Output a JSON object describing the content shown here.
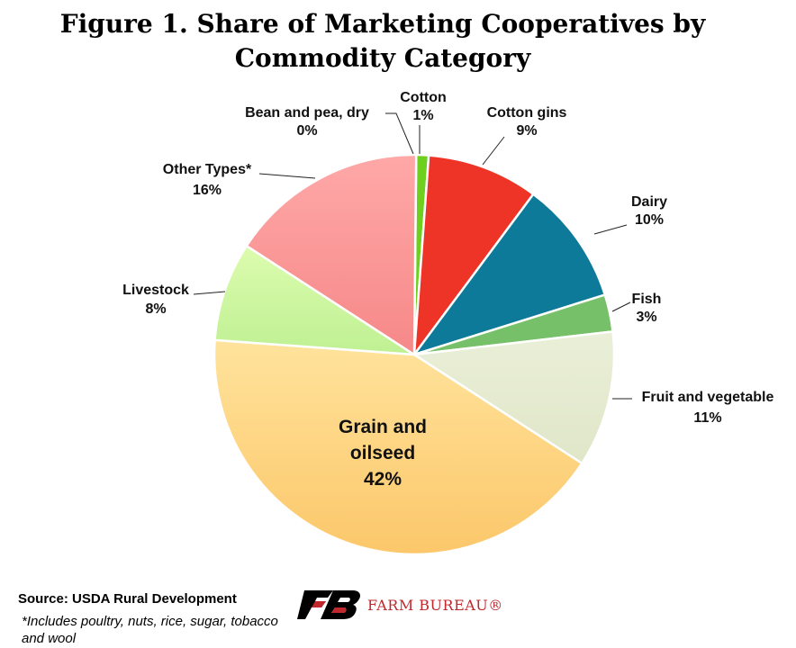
{
  "title_line1": "Figure 1. Share of Marketing Cooperatives by",
  "title_line2": "Commodity Category",
  "source": "Source: USDA Rural Development",
  "footnote": "*Includes poultry, nuts, rice, sugar, tobacco and wool",
  "logo": {
    "text": "FARM BUREAU®",
    "icon": "farm-bureau-logo-icon",
    "color": "#c0282d"
  },
  "chart_data": {
    "type": "pie",
    "title": "Figure 1. Share of Marketing Cooperatives by Commodity Category",
    "start": "12 o'clock, clockwise",
    "slices": [
      {
        "label": "Cotton",
        "value": 1,
        "display": "1%",
        "color": "#6fcf1f"
      },
      {
        "label": "Cotton gins",
        "value": 9,
        "display": "9%",
        "color": "#ee3427"
      },
      {
        "label": "Dairy",
        "value": 10,
        "display": "10%",
        "color": "#0e7a99"
      },
      {
        "label": "Fish",
        "value": 3,
        "display": "3%",
        "color": "#77c06a"
      },
      {
        "label": "Fruit and vegetable",
        "value": 11,
        "display": "11%",
        "color": "#e6ebd2"
      },
      {
        "label": "Grain and oilseed",
        "value": 42,
        "display": "42%",
        "color": "#fdd883"
      },
      {
        "label": "Livestock",
        "value": 8,
        "display": "8%",
        "color": "#cdf5a0"
      },
      {
        "label": "Other Types*",
        "value": 16,
        "display": "16%",
        "color": "#fb9898"
      },
      {
        "label": "Bean and pea, dry",
        "value": 0,
        "display": "0%",
        "color": "#e4e4e4"
      }
    ]
  }
}
